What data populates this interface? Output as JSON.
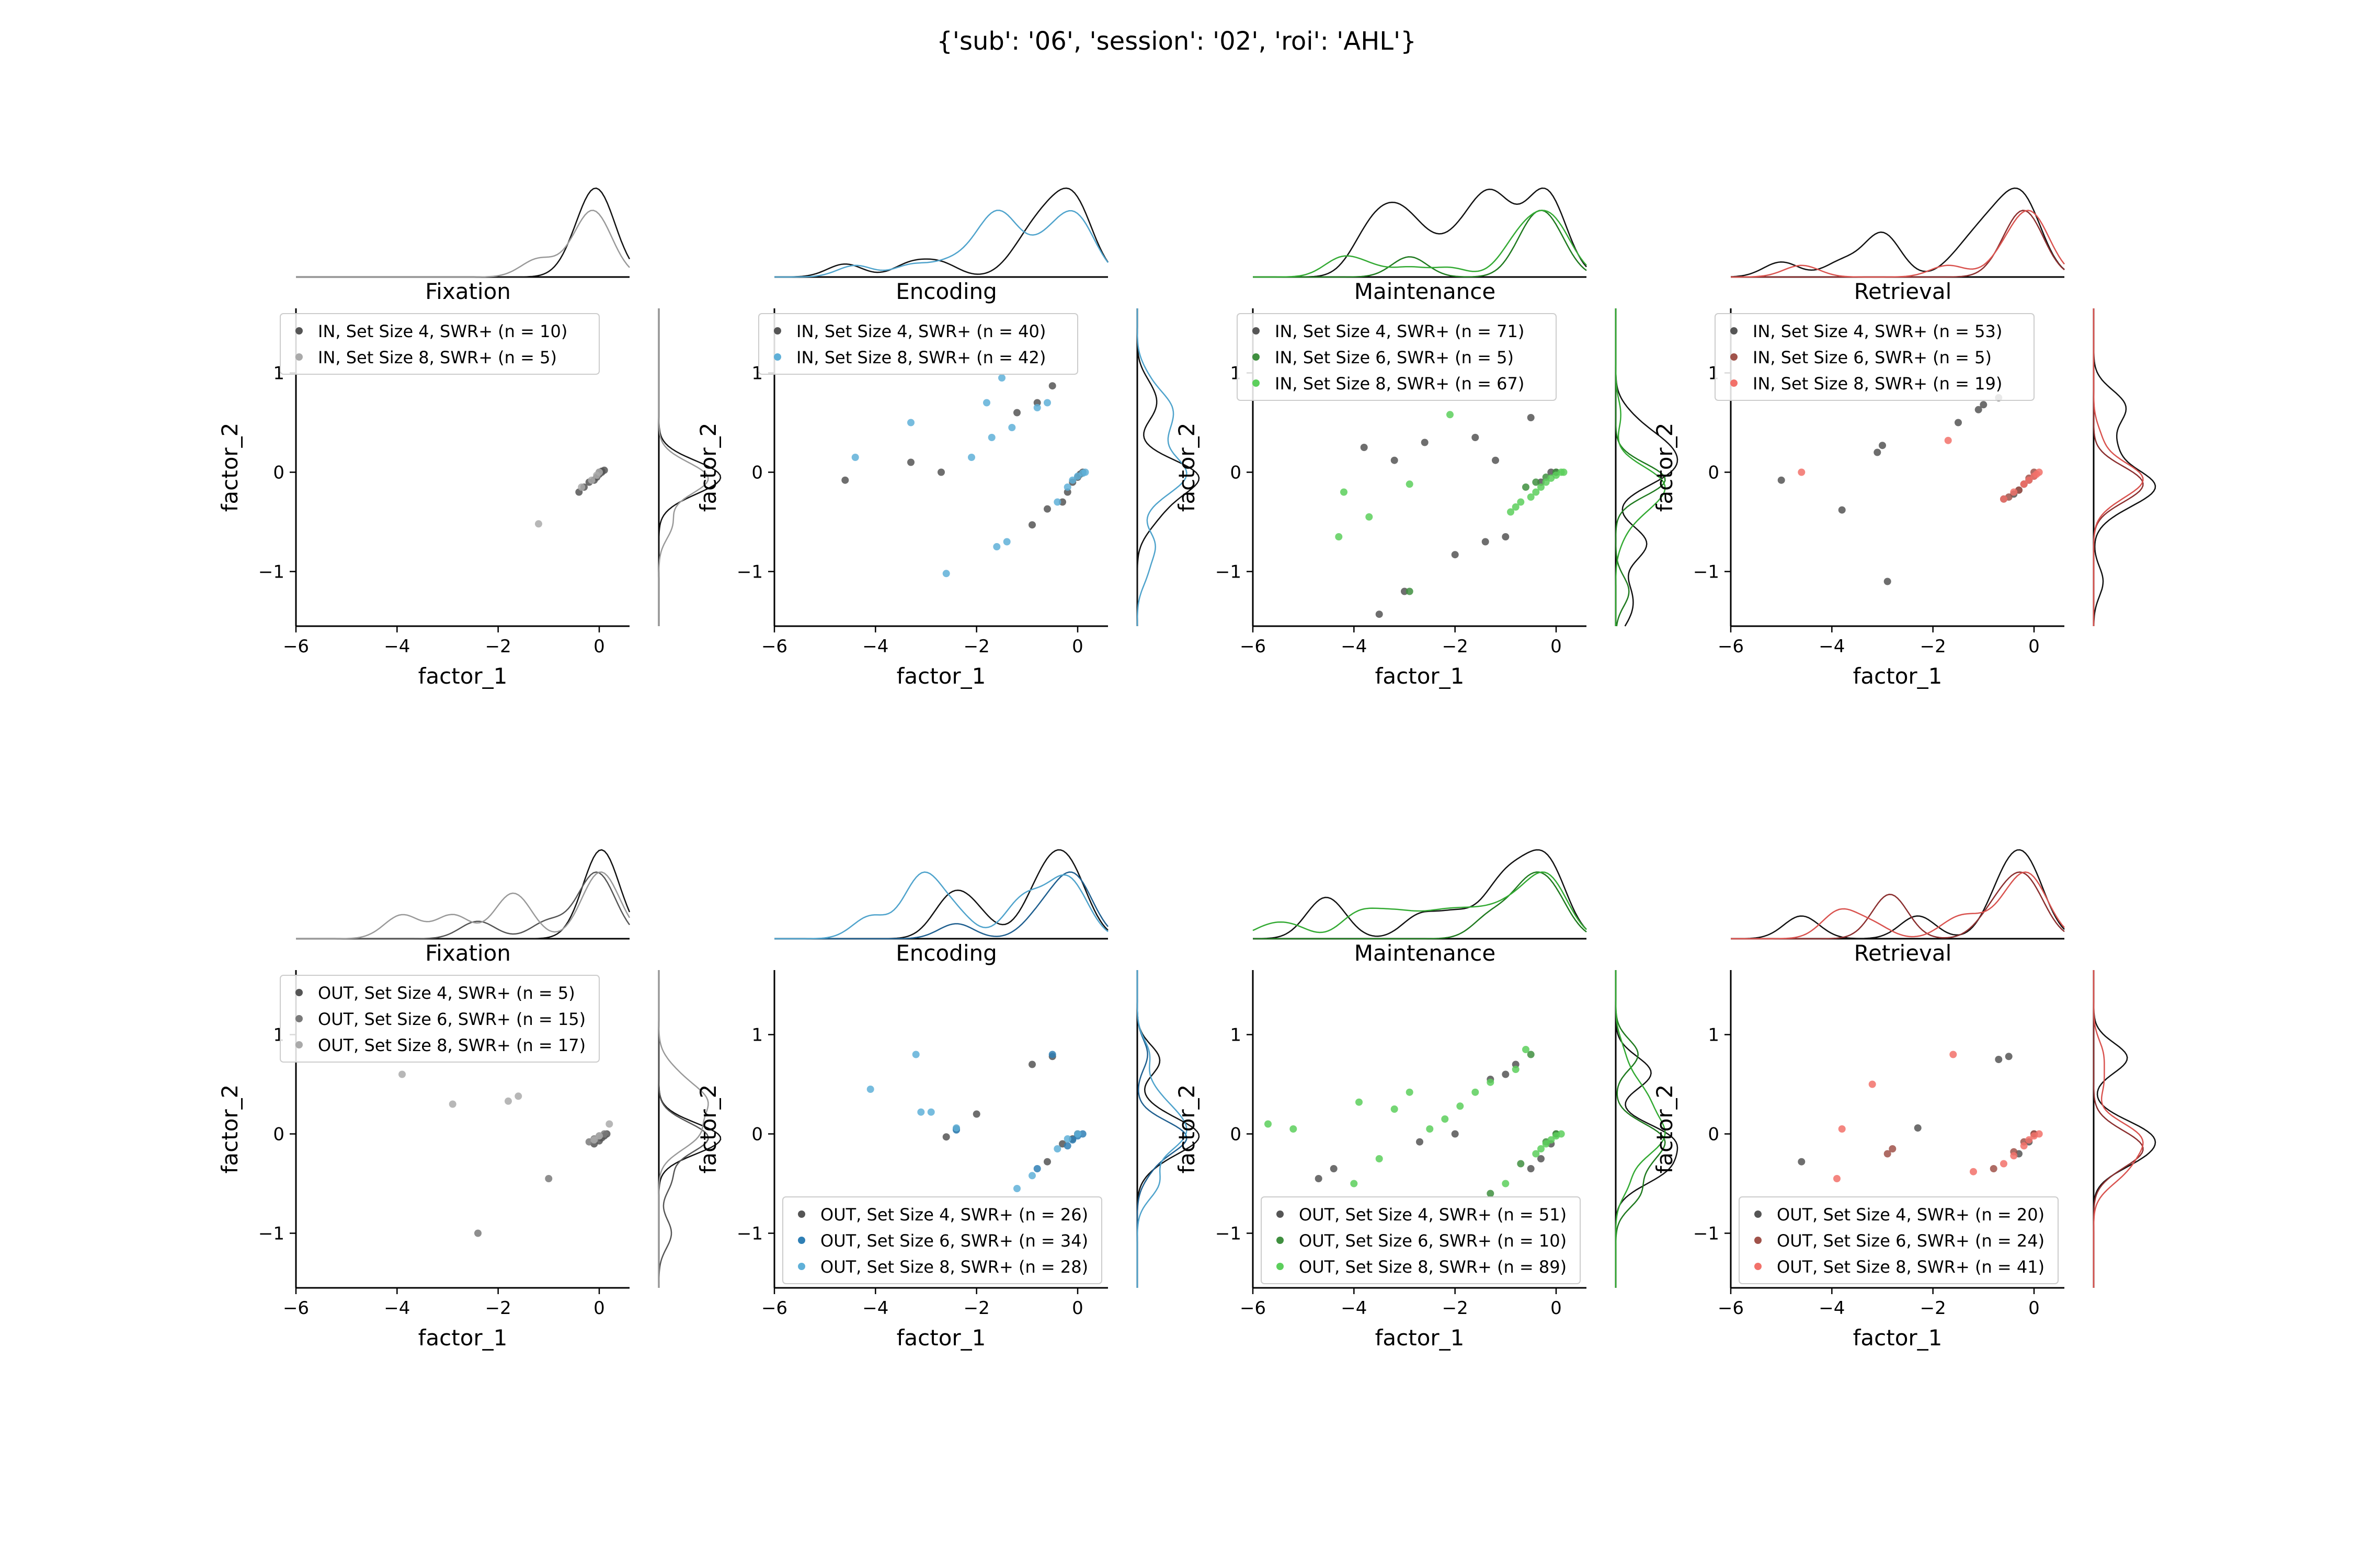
{
  "title": "{'sub': '06', 'session': '02', 'roi': 'AHL'}",
  "axis_labels": {
    "x": "factor_1",
    "y": "factor_2"
  },
  "colors": {
    "Fixation": [
      "#555555",
      "#7a7a7a",
      "#aaaaaa"
    ],
    "Encoding": [
      "#555555",
      "#2f7fb5",
      "#5fb0d8"
    ],
    "Maintenance": [
      "#555555",
      "#3f8f3f",
      "#5ccf5c"
    ],
    "Retrieval": [
      "#555555",
      "#a0524a",
      "#f2716a"
    ],
    "kde": {
      "Fixation": [
        "#111111",
        "#555555",
        "#999999"
      ],
      "Encoding": [
        "#111111",
        "#1f5f8f",
        "#4fa3cc"
      ],
      "Maintenance": [
        "#111111",
        "#1f7a1f",
        "#33aa33"
      ],
      "Retrieval": [
        "#111111",
        "#8b2f2f",
        "#d9534f"
      ]
    }
  },
  "chart_data": [
    {
      "type": "scatter",
      "row": "IN",
      "title": "Fixation",
      "xlabel": "factor_1",
      "ylabel": "factor_2",
      "xlim": [
        -6,
        0.6
      ],
      "ylim": [
        -1.55,
        1.65
      ],
      "xticks": [
        -6,
        -4,
        -2,
        0
      ],
      "yticks": [
        -1,
        0,
        1
      ],
      "legend_position": "top",
      "series": [
        {
          "name": "IN, Set Size 4, SWR+ (n = 10)",
          "color_index": 0,
          "x": [
            -0.4,
            -0.2,
            -0.05,
            0.0,
            0.05,
            -0.3,
            0.1,
            -0.1,
            0.0,
            0.05
          ],
          "y": [
            -0.2,
            -0.1,
            -0.05,
            0.0,
            0.0,
            -0.15,
            0.02,
            -0.08,
            -0.02,
            0.01
          ]
        },
        {
          "name": "IN, Set Size 8, SWR+ (n = 5)",
          "color_index": 2,
          "x": [
            -1.2,
            -0.35,
            -0.15,
            -0.05,
            0.0
          ],
          "y": [
            -0.52,
            -0.15,
            -0.08,
            -0.03,
            0.0
          ]
        }
      ]
    },
    {
      "type": "scatter",
      "row": "IN",
      "title": "Encoding",
      "xlabel": "factor_1",
      "ylabel": "factor_2",
      "xlim": [
        -6,
        0.6
      ],
      "ylim": [
        -1.55,
        1.65
      ],
      "xticks": [
        -6,
        -4,
        -2,
        0
      ],
      "yticks": [
        -1,
        0,
        1
      ],
      "legend_position": "top",
      "series": [
        {
          "name": "IN, Set Size 4, SWR+ (n = 40)",
          "color_index": 0,
          "x": [
            -4.6,
            -3.3,
            -2.7,
            -1.2,
            -0.9,
            -0.8,
            -0.6,
            -0.5,
            -0.3,
            -0.2,
            -0.1,
            0.0,
            0.05,
            0.1
          ],
          "y": [
            -0.08,
            0.1,
            0.0,
            0.6,
            -0.53,
            0.7,
            -0.37,
            0.87,
            -0.3,
            -0.2,
            -0.1,
            -0.05,
            -0.02,
            0.0
          ]
        },
        {
          "name": "IN, Set Size 8, SWR+ (n = 42)",
          "color_index": 2,
          "x": [
            -4.4,
            -3.3,
            -2.6,
            -2.1,
            -1.8,
            -1.7,
            -1.6,
            -1.5,
            -1.4,
            -1.3,
            -0.8,
            -0.6,
            -0.4,
            -0.2,
            -0.1,
            0.0,
            0.1,
            0.15
          ],
          "y": [
            0.15,
            0.5,
            -1.02,
            0.15,
            0.7,
            0.35,
            -0.75,
            0.95,
            -0.7,
            0.45,
            0.65,
            0.7,
            -0.3,
            -0.15,
            -0.08,
            -0.04,
            -0.01,
            0.0
          ]
        }
      ]
    },
    {
      "type": "scatter",
      "row": "IN",
      "title": "Maintenance",
      "xlabel": "factor_1",
      "ylabel": "factor_2",
      "xlim": [
        -6,
        0.6
      ],
      "ylim": [
        -1.55,
        1.65
      ],
      "xticks": [
        -6,
        -4,
        -2,
        0
      ],
      "yticks": [
        -1,
        0,
        1
      ],
      "legend_position": "top",
      "series": [
        {
          "name": "IN, Set Size 4, SWR+ (n = 71)",
          "color_index": 0,
          "x": [
            -3.8,
            -3.5,
            -3.2,
            -3.0,
            -2.6,
            -2.0,
            -1.6,
            -1.4,
            -1.2,
            -1.0,
            -0.5,
            -0.3,
            -0.1,
            0.0
          ],
          "y": [
            0.25,
            -1.43,
            0.12,
            -1.2,
            0.3,
            -0.83,
            0.35,
            -0.7,
            0.12,
            -0.65,
            0.55,
            -0.1,
            0.0,
            0.0
          ]
        },
        {
          "name": "IN, Set Size 6, SWR+ (n = 5)",
          "color_index": 1,
          "x": [
            -2.9,
            -0.6,
            -0.4,
            -0.2,
            0.0
          ],
          "y": [
            -1.2,
            -0.15,
            -0.1,
            -0.05,
            0.0
          ]
        },
        {
          "name": "IN, Set Size 8, SWR+ (n = 67)",
          "color_index": 2,
          "x": [
            -4.3,
            -4.2,
            -3.7,
            -2.9,
            -2.1,
            -0.9,
            -0.8,
            -0.7,
            -0.5,
            -0.4,
            -0.3,
            -0.2,
            -0.1,
            0.0,
            0.1,
            0.15
          ],
          "y": [
            -0.65,
            -0.2,
            -0.45,
            -0.12,
            0.58,
            -0.4,
            -0.35,
            -0.3,
            -0.25,
            -0.2,
            -0.15,
            -0.1,
            -0.06,
            -0.03,
            0.0,
            0.0
          ]
        }
      ]
    },
    {
      "type": "scatter",
      "row": "IN",
      "title": "Retrieval",
      "xlabel": "factor_1",
      "ylabel": "factor_2",
      "xlim": [
        -6,
        0.6
      ],
      "ylim": [
        -1.55,
        1.65
      ],
      "xticks": [
        -6,
        -4,
        -2,
        0
      ],
      "yticks": [
        -1,
        0,
        1
      ],
      "legend_position": "top",
      "series": [
        {
          "name": "IN, Set Size 4, SWR+ (n = 53)",
          "color_index": 0,
          "x": [
            -5.0,
            -3.8,
            -3.1,
            -3.0,
            -2.9,
            -1.5,
            -1.1,
            -1.0,
            -0.7,
            -0.6,
            -0.4,
            -0.3,
            -0.2,
            -0.1,
            0.0
          ],
          "y": [
            -0.08,
            -0.38,
            0.2,
            0.27,
            -1.1,
            0.5,
            0.63,
            0.68,
            0.75,
            -0.27,
            -0.22,
            -0.18,
            -0.12,
            -0.08,
            -0.04
          ]
        },
        {
          "name": "IN, Set Size 6, SWR+ (n = 5)",
          "color_index": 1,
          "x": [
            -0.5,
            -0.3,
            -0.2,
            -0.1,
            0.0
          ],
          "y": [
            -0.25,
            -0.18,
            -0.12,
            -0.06,
            0.0
          ]
        },
        {
          "name": "IN, Set Size 8, SWR+ (n = 19)",
          "color_index": 2,
          "x": [
            -4.6,
            -1.7,
            -0.6,
            -0.4,
            -0.2,
            -0.1,
            0.0,
            0.05,
            0.1
          ],
          "y": [
            0.0,
            0.32,
            -0.27,
            -0.2,
            -0.12,
            -0.08,
            -0.04,
            -0.02,
            0.0
          ]
        }
      ]
    },
    {
      "type": "scatter",
      "row": "OUT",
      "title": "Fixation",
      "xlabel": "factor_1",
      "ylabel": "factor_2",
      "xlim": [
        -6,
        0.6
      ],
      "ylim": [
        -1.55,
        1.65
      ],
      "xticks": [
        -6,
        -4,
        -2,
        0
      ],
      "yticks": [
        -1,
        0,
        1
      ],
      "legend_position": "top",
      "series": [
        {
          "name": "OUT, Set Size 4, SWR+ (n = 5)",
          "color_index": 0,
          "x": [
            -0.1,
            0.0,
            0.05,
            0.1,
            0.15
          ],
          "y": [
            -0.1,
            -0.07,
            -0.04,
            -0.02,
            0.0
          ]
        },
        {
          "name": "OUT, Set Size 6, SWR+ (n = 15)",
          "color_index": 1,
          "x": [
            -2.4,
            -1.0,
            -0.2,
            -0.1,
            0.0,
            0.1
          ],
          "y": [
            -1.0,
            -0.45,
            -0.08,
            -0.05,
            -0.02,
            0.0
          ]
        },
        {
          "name": "OUT, Set Size 8, SWR+ (n = 17)",
          "color_index": 2,
          "x": [
            -3.9,
            -2.9,
            -1.8,
            -1.6,
            -0.1,
            0.0,
            0.2
          ],
          "y": [
            0.6,
            0.3,
            0.33,
            0.38,
            -0.06,
            -0.02,
            0.1
          ]
        }
      ]
    },
    {
      "type": "scatter",
      "row": "OUT",
      "title": "Encoding",
      "xlabel": "factor_1",
      "ylabel": "factor_2",
      "xlim": [
        -6,
        0.6
      ],
      "ylim": [
        -1.55,
        1.65
      ],
      "xticks": [
        -6,
        -4,
        -2,
        0
      ],
      "yticks": [
        -1,
        0,
        1
      ],
      "legend_position": "bottom-right",
      "series": [
        {
          "name": "OUT, Set Size 4, SWR+ (n = 26)",
          "color_index": 0,
          "x": [
            -2.6,
            -2.4,
            -2.0,
            -0.9,
            -0.6,
            -0.5,
            -0.3,
            -0.1,
            0.0
          ],
          "y": [
            -0.03,
            0.05,
            0.2,
            0.7,
            -0.28,
            0.78,
            -0.1,
            -0.05,
            0.0
          ]
        },
        {
          "name": "OUT, Set Size 6, SWR+ (n = 34)",
          "color_index": 1,
          "x": [
            -2.4,
            -0.8,
            -0.5,
            -0.2,
            -0.1,
            0.0,
            0.1
          ],
          "y": [
            0.04,
            -0.35,
            0.8,
            -0.12,
            -0.06,
            -0.02,
            0.0
          ]
        },
        {
          "name": "OUT, Set Size 8, SWR+ (n = 28)",
          "color_index": 2,
          "x": [
            -4.1,
            -3.2,
            -3.1,
            -2.9,
            -2.4,
            -1.2,
            -0.9,
            -0.4,
            -0.2,
            0.0
          ],
          "y": [
            0.45,
            0.8,
            0.22,
            0.22,
            0.06,
            -0.55,
            -0.42,
            -0.15,
            -0.05,
            0.0
          ]
        }
      ]
    },
    {
      "type": "scatter",
      "row": "OUT",
      "title": "Maintenance",
      "xlabel": "factor_1",
      "ylabel": "factor_2",
      "xlim": [
        -6,
        0.6
      ],
      "ylim": [
        -1.55,
        1.65
      ],
      "xticks": [
        -6,
        -4,
        -2,
        0
      ],
      "yticks": [
        -1,
        0,
        1
      ],
      "legend_position": "bottom-right",
      "series": [
        {
          "name": "OUT, Set Size 4, SWR+ (n = 51)",
          "color_index": 0,
          "x": [
            -4.7,
            -4.4,
            -2.7,
            -2.0,
            -1.3,
            -1.0,
            -0.8,
            -0.5,
            -0.3,
            -0.1,
            0.0
          ],
          "y": [
            -0.45,
            -0.35,
            -0.08,
            0.0,
            0.55,
            0.6,
            0.7,
            -0.35,
            -0.25,
            -0.1,
            0.0
          ]
        },
        {
          "name": "OUT, Set Size 6, SWR+ (n = 10)",
          "color_index": 1,
          "x": [
            -1.3,
            -0.7,
            -0.5,
            -0.2,
            0.0
          ],
          "y": [
            -0.6,
            -0.3,
            0.8,
            -0.08,
            0.0
          ]
        },
        {
          "name": "OUT, Set Size 8, SWR+ (n = 89)",
          "color_index": 2,
          "x": [
            -5.7,
            -5.2,
            -4.0,
            -3.9,
            -3.5,
            -3.2,
            -2.9,
            -2.5,
            -2.2,
            -1.9,
            -1.6,
            -1.3,
            -1.0,
            -0.8,
            -0.6,
            -0.4,
            -0.3,
            -0.2,
            -0.1,
            0.0,
            0.1
          ],
          "y": [
            0.1,
            0.05,
            -0.5,
            0.32,
            -0.25,
            0.25,
            0.42,
            0.05,
            0.15,
            0.28,
            0.42,
            0.52,
            -0.5,
            0.65,
            0.85,
            -0.2,
            -0.15,
            -0.1,
            -0.06,
            -0.02,
            0.0
          ]
        }
      ]
    },
    {
      "type": "scatter",
      "row": "OUT",
      "title": "Retrieval",
      "xlabel": "factor_1",
      "ylabel": "factor_2",
      "xlim": [
        -6,
        0.6
      ],
      "ylim": [
        -1.55,
        1.65
      ],
      "xticks": [
        -6,
        -4,
        -2,
        0
      ],
      "yticks": [
        -1,
        0,
        1
      ],
      "legend_position": "bottom-right",
      "series": [
        {
          "name": "OUT, Set Size 4, SWR+ (n = 20)",
          "color_index": 0,
          "x": [
            -4.6,
            -2.3,
            -0.7,
            -0.5,
            -0.3,
            -0.1,
            0.0
          ],
          "y": [
            -0.28,
            0.06,
            0.75,
            0.78,
            -0.2,
            -0.08,
            0.0
          ]
        },
        {
          "name": "OUT, Set Size 6, SWR+ (n = 24)",
          "color_index": 1,
          "x": [
            -2.9,
            -2.8,
            -0.8,
            -0.4,
            -0.2,
            0.0
          ],
          "y": [
            -0.2,
            -0.15,
            -0.35,
            -0.18,
            -0.08,
            0.0
          ]
        },
        {
          "name": "OUT, Set Size 8, SWR+ (n = 41)",
          "color_index": 2,
          "x": [
            -3.9,
            -3.8,
            -3.2,
            -1.6,
            -1.2,
            -0.6,
            -0.4,
            -0.2,
            -0.1,
            0.0,
            0.1
          ],
          "y": [
            -0.45,
            0.05,
            0.5,
            0.8,
            -0.38,
            -0.3,
            -0.22,
            -0.12,
            -0.06,
            -0.02,
            0.0
          ]
        }
      ]
    }
  ]
}
